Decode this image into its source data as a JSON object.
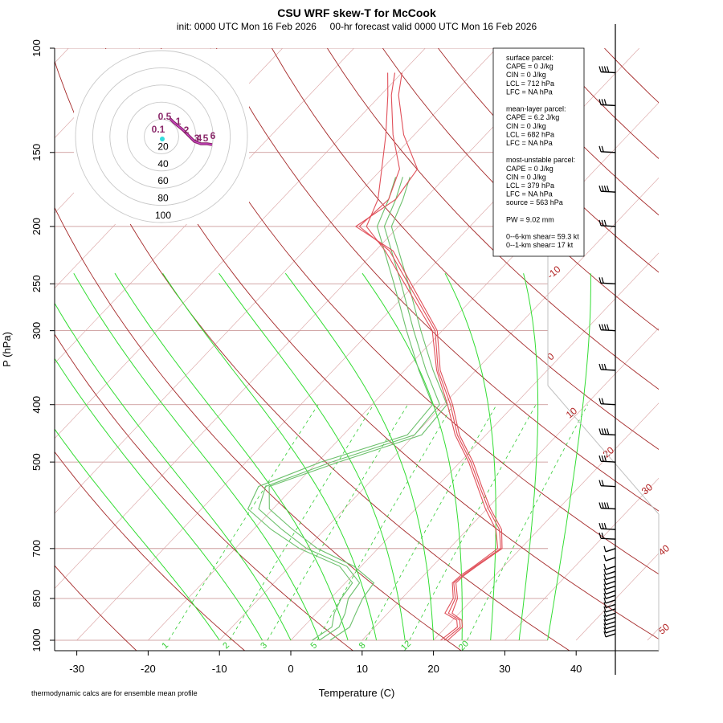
{
  "title": "CSU WRF skew-T for McCook",
  "subtitle": "init: 0000 UTC Mon 16 Feb 2026     00-hr forecast valid 0000 UTC Mon 16 Feb 2026",
  "footnote": "thermodynamic calcs are for ensemble mean profile",
  "stats": [
    "surface parcel:",
    "CAPE = 0 J/kg",
    "CIN = 0 J/kg",
    "LCL = 712 hPa",
    "LFC = NA hPa",
    "",
    "mean-layer parcel:",
    "CAPE = 6.2 J/kg",
    "CIN = 0 J/kg",
    "LCL = 682 hPa",
    "LFC = NA hPa",
    "",
    "most-unstable parcel:",
    "CAPE = 0 J/kg",
    "CIN = 0 J/kg",
    "LCL = 379 hPa",
    "LFC = NA hPa",
    "source = 563 hPa",
    "",
    "PW =  9.02 mm",
    "",
    "0--6-km shear= 59.3 kt",
    "0--1-km shear= 17 kt"
  ],
  "colors": {
    "isotherm": "#b22222",
    "isobar": "#c48a8a",
    "dry_adiabat": "#a52a2a",
    "moist_adiabat": "#33dd33",
    "mixing_ratio": "#33cc33",
    "temperature": "#e0505a",
    "dewpoint": "#6cc06c",
    "barb": "#000000",
    "hodo_trace": "#8b2a6b",
    "hodo_ring": "#c8c8c8"
  },
  "chart_data": {
    "type": "skew-T log-p",
    "xlabel": "Temperature (C)",
    "ylabel": "P (hPa)",
    "x_ticks": [
      -30,
      -20,
      -10,
      0,
      10,
      20,
      30,
      40
    ],
    "p_ticks": [
      100,
      150,
      200,
      250,
      300,
      400,
      500,
      700,
      850,
      1000
    ],
    "isotherm_labels": [
      -10,
      0,
      10,
      20,
      30,
      40,
      50
    ],
    "mixing_ratio_labels": [
      "1",
      "2",
      "3",
      "5",
      "8",
      "12",
      "20"
    ],
    "hodograph": {
      "ring_labels": [
        "20",
        "40",
        "60",
        "80",
        "100"
      ],
      "height_labels": [
        "0.5",
        "0.1",
        "1",
        "2",
        "3",
        "4",
        "5",
        "6"
      ]
    },
    "series": [
      {
        "name": "temperature",
        "members": [
          [
            [
              1000,
              21.5
            ],
            [
              950,
              22.0
            ],
            [
              925,
              21.0
            ],
            [
              900,
              18.5
            ],
            [
              850,
              17.5
            ],
            [
              800,
              15.2
            ],
            [
              775,
              15.5
            ],
            [
              750,
              16.0
            ],
            [
              700,
              17.2
            ],
            [
              650,
              14.5
            ],
            [
              600,
              10.2
            ],
            [
              550,
              6.0
            ],
            [
              500,
              1.5
            ],
            [
              450,
              -4.0
            ],
            [
              400,
              -9.0
            ],
            [
              350,
              -15.3
            ],
            [
              300,
              -21.0
            ],
            [
              250,
              -31.0
            ],
            [
              220,
              -38.0
            ],
            [
              200,
              -45.5
            ],
            [
              180,
              -45.0
            ],
            [
              160,
              -47.5
            ],
            [
              140,
              -53.0
            ],
            [
              120,
              -58.5
            ],
            [
              110,
              -61.0
            ]
          ],
          [
            [
              1000,
              21.0
            ],
            [
              950,
              21.6
            ],
            [
              925,
              20.6
            ],
            [
              900,
              18.0
            ],
            [
              850,
              17.2
            ],
            [
              800,
              15.0
            ],
            [
              775,
              15.2
            ],
            [
              750,
              15.8
            ],
            [
              700,
              16.8
            ],
            [
              650,
              14.0
            ],
            [
              600,
              9.8
            ],
            [
              550,
              5.7
            ],
            [
              500,
              1.2
            ],
            [
              450,
              -4.3
            ],
            [
              400,
              -9.4
            ],
            [
              350,
              -15.5
            ],
            [
              300,
              -21.4
            ],
            [
              250,
              -31.5
            ],
            [
              220,
              -38.6
            ],
            [
              200,
              -44.5
            ],
            [
              180,
              -46.5
            ],
            [
              160,
              -50.0
            ],
            [
              140,
              -54.0
            ],
            [
              120,
              -59.0
            ],
            [
              110,
              -62.0
            ]
          ],
          [
            [
              1000,
              22.0
            ],
            [
              950,
              22.3
            ],
            [
              925,
              21.3
            ],
            [
              900,
              19.0
            ],
            [
              850,
              17.8
            ],
            [
              800,
              15.5
            ],
            [
              775,
              15.7
            ],
            [
              750,
              16.2
            ],
            [
              700,
              17.4
            ],
            [
              650,
              14.8
            ],
            [
              600,
              10.5
            ],
            [
              550,
              6.3
            ],
            [
              500,
              1.8
            ],
            [
              450,
              -3.7
            ],
            [
              400,
              -8.7
            ],
            [
              350,
              -15.0
            ],
            [
              300,
              -20.7
            ],
            [
              250,
              -30.6
            ],
            [
              220,
              -37.5
            ],
            [
              200,
              -46.0
            ],
            [
              180,
              -44.0
            ],
            [
              160,
              -45.0
            ],
            [
              140,
              -51.5
            ],
            [
              120,
              -57.5
            ],
            [
              110,
              -60.0
            ]
          ]
        ]
      },
      {
        "name": "dewpoint",
        "members": [
          [
            [
              1000,
              4.0
            ],
            [
              950,
              5.0
            ],
            [
              900,
              4.0
            ],
            [
              850,
              2.5
            ],
            [
              800,
              2.0
            ],
            [
              750,
              -2.0
            ],
            [
              700,
              -10.0
            ],
            [
              650,
              -16.0
            ],
            [
              600,
              -22.0
            ],
            [
              550,
              -24.0
            ],
            [
              500,
              -18.0
            ],
            [
              450,
              -10.0
            ],
            [
              400,
              -10.5
            ],
            [
              350,
              -17.0
            ],
            [
              300,
              -24.0
            ],
            [
              250,
              -32.0
            ],
            [
              200,
              -42.0
            ],
            [
              180,
              -44.0
            ],
            [
              165,
              -46.0
            ]
          ],
          [
            [
              1000,
              5.5
            ],
            [
              950,
              6.5
            ],
            [
              900,
              5.5
            ],
            [
              850,
              4.5
            ],
            [
              800,
              4.0
            ],
            [
              750,
              -1.0
            ],
            [
              700,
              -8.5
            ],
            [
              650,
              -14.5
            ],
            [
              600,
              -20.5
            ],
            [
              550,
              -23.5
            ],
            [
              500,
              -17.0
            ],
            [
              450,
              -9.0
            ],
            [
              400,
              -9.5
            ],
            [
              350,
              -16.0
            ],
            [
              300,
              -23.0
            ],
            [
              250,
              -31.0
            ],
            [
              200,
              -41.0
            ],
            [
              180,
              -43.0
            ],
            [
              165,
              -45.0
            ]
          ],
          [
            [
              1000,
              3.0
            ],
            [
              950,
              4.0
            ],
            [
              900,
              2.5
            ],
            [
              850,
              1.5
            ],
            [
              800,
              1.0
            ],
            [
              750,
              -3.0
            ],
            [
              700,
              -11.0
            ],
            [
              650,
              -17.5
            ],
            [
              600,
              -23.5
            ],
            [
              550,
              -25.0
            ],
            [
              500,
              -19.5
            ],
            [
              450,
              -11.0
            ],
            [
              400,
              -11.5
            ],
            [
              350,
              -18.0
            ],
            [
              300,
              -25.0
            ],
            [
              250,
              -33.0
            ],
            [
              200,
              -43.0
            ],
            [
              180,
              -45.0
            ],
            [
              165,
              -47.0
            ]
          ]
        ]
      }
    ],
    "wind_barb_levels_hpa": [
      975,
      960,
      945,
      930,
      915,
      900,
      885,
      870,
      855,
      840,
      825,
      810,
      795,
      780,
      765,
      750,
      725,
      700,
      675,
      650,
      600,
      550,
      500,
      450,
      400,
      350,
      300,
      250,
      200,
      175,
      150,
      125,
      110
    ]
  }
}
